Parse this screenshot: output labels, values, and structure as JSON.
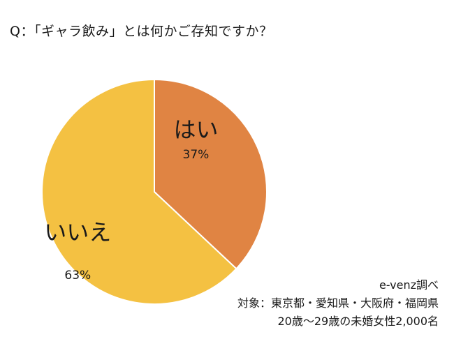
{
  "question": "Q：「ギャラ飲み」とは何かご存知ですか？",
  "chart_data": {
    "type": "pie",
    "title": "",
    "slices": [
      {
        "label": "はい",
        "value": 37,
        "value_label": "37%",
        "color": "#E08443"
      },
      {
        "label": "いいえ",
        "value": 63,
        "value_label": "63%",
        "color": "#F4C142"
      }
    ],
    "start": "12 o'clock, clockwise",
    "legend": "none (labels drawn inside slices)"
  },
  "footnote": {
    "source": "e-venz調べ",
    "target": "対象：東京都・愛知県・大阪府・福岡県",
    "sample": "20歳〜29歳の未婚女性2,000名"
  }
}
